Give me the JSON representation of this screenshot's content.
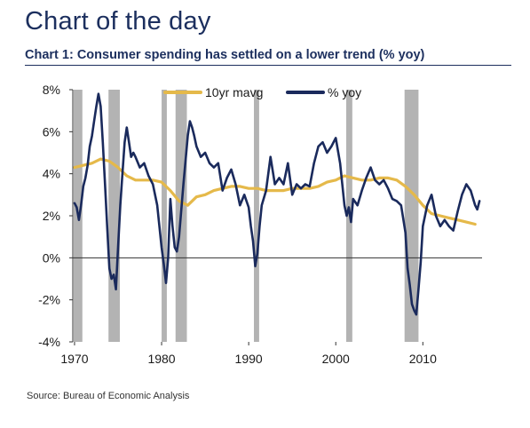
{
  "page": {
    "heading": "Chart of the day",
    "subtitle": "Chart 1: Consumer spending has settled on a lower trend (% yoy)",
    "source": "Source: Bureau of Economic Analysis"
  },
  "chart_data": {
    "type": "line",
    "xlim": [
      1969.8,
      2016.8
    ],
    "ylim": [
      -4,
      8
    ],
    "y_ticks": [
      -4,
      -2,
      0,
      2,
      4,
      6,
      8
    ],
    "y_tick_labels": [
      "-4%",
      "-2%",
      "0%",
      "2%",
      "4%",
      "6%",
      "8%"
    ],
    "x_ticks": [
      1970,
      1980,
      1990,
      2000,
      2010
    ],
    "x_tick_labels": [
      "1970",
      "1980",
      "1990",
      "2000",
      "2010"
    ],
    "legend_placement": "top",
    "recessions": [
      [
        1969.9,
        1970.9
      ],
      [
        1973.9,
        1975.2
      ],
      [
        1980.0,
        1980.6
      ],
      [
        1981.6,
        1982.9
      ],
      [
        1990.6,
        1991.2
      ],
      [
        2001.2,
        2001.9
      ],
      [
        2007.9,
        2009.5
      ]
    ],
    "colors": {
      "recession": "#b3b3b3",
      "mavg": "#e5b94a",
      "yoy": "#1a2a5c",
      "zero_line": "#333333"
    },
    "series": [
      {
        "name": "10yr mavg",
        "x": [
          1970,
          1971,
          1972,
          1973,
          1974,
          1975,
          1976,
          1977,
          1978,
          1979,
          1980,
          1981,
          1982,
          1983,
          1984,
          1985,
          1986,
          1987,
          1988,
          1989,
          1990,
          1991,
          1992,
          1993,
          1994,
          1995,
          1996,
          1997,
          1998,
          1999,
          2000,
          2001,
          2002,
          2003,
          2004,
          2005,
          2006,
          2007,
          2008,
          2009,
          2010,
          2011,
          2012,
          2013,
          2014,
          2015,
          2016
        ],
        "values": [
          4.3,
          4.4,
          4.5,
          4.7,
          4.6,
          4.3,
          3.9,
          3.7,
          3.7,
          3.7,
          3.6,
          3.2,
          2.7,
          2.5,
          2.9,
          3.0,
          3.2,
          3.3,
          3.4,
          3.4,
          3.3,
          3.3,
          3.2,
          3.2,
          3.2,
          3.3,
          3.3,
          3.3,
          3.4,
          3.6,
          3.7,
          3.9,
          3.8,
          3.7,
          3.7,
          3.8,
          3.8,
          3.7,
          3.4,
          3.0,
          2.5,
          2.1,
          2.0,
          1.9,
          1.8,
          1.7,
          1.6
        ]
      },
      {
        "name": "% yoy",
        "x": [
          1970.0,
          1970.25,
          1970.5,
          1970.75,
          1971.0,
          1971.25,
          1971.5,
          1971.75,
          1972.0,
          1972.25,
          1972.5,
          1972.75,
          1973.0,
          1973.25,
          1973.5,
          1973.75,
          1974.0,
          1974.25,
          1974.5,
          1974.75,
          1975.0,
          1975.25,
          1975.5,
          1975.75,
          1976.0,
          1976.25,
          1976.5,
          1976.75,
          1977.0,
          1977.5,
          1978.0,
          1978.5,
          1979.0,
          1979.5,
          1980.0,
          1980.25,
          1980.5,
          1980.75,
          1981.0,
          1981.25,
          1981.5,
          1981.75,
          1982.0,
          1982.5,
          1983.0,
          1983.25,
          1983.5,
          1983.75,
          1984.0,
          1984.5,
          1985.0,
          1985.5,
          1986.0,
          1986.5,
          1987.0,
          1987.5,
          1988.0,
          1988.5,
          1989.0,
          1989.5,
          1990.0,
          1990.25,
          1990.5,
          1990.75,
          1991.0,
          1991.25,
          1991.5,
          1992.0,
          1992.5,
          1993.0,
          1993.5,
          1994.0,
          1994.5,
          1995.0,
          1995.5,
          1996.0,
          1996.5,
          1997.0,
          1997.5,
          1998.0,
          1998.5,
          1999.0,
          1999.5,
          2000.0,
          2000.5,
          2001.0,
          2001.25,
          2001.5,
          2001.75,
          2002.0,
          2002.5,
          2003.0,
          2003.5,
          2004.0,
          2004.5,
          2005.0,
          2005.5,
          2006.0,
          2006.5,
          2007.0,
          2007.5,
          2008.0,
          2008.25,
          2008.5,
          2008.75,
          2009.0,
          2009.25,
          2009.5,
          2009.75,
          2010.0,
          2010.5,
          2011.0,
          2011.5,
          2012.0,
          2012.5,
          2013.0,
          2013.5,
          2014.0,
          2014.5,
          2015.0,
          2015.5,
          2016.0,
          2016.25,
          2016.5
        ],
        "values": [
          2.6,
          2.4,
          1.8,
          2.5,
          3.4,
          3.8,
          4.4,
          5.3,
          5.8,
          6.5,
          7.2,
          7.8,
          7.2,
          5.5,
          3.5,
          1.5,
          -0.5,
          -1.0,
          -0.8,
          -1.5,
          0.5,
          2.5,
          4.0,
          5.5,
          6.2,
          5.5,
          4.8,
          5.0,
          4.8,
          4.3,
          4.5,
          3.9,
          3.5,
          2.5,
          0.5,
          -0.3,
          -1.2,
          0.0,
          2.8,
          1.5,
          0.5,
          0.3,
          1.0,
          3.5,
          5.8,
          6.5,
          6.2,
          5.8,
          5.3,
          4.8,
          5.0,
          4.5,
          4.3,
          4.5,
          3.2,
          3.8,
          4.2,
          3.5,
          2.5,
          3.0,
          2.4,
          1.5,
          0.8,
          -0.4,
          0.2,
          1.5,
          2.5,
          3.2,
          4.8,
          3.5,
          3.8,
          3.5,
          4.5,
          3.0,
          3.5,
          3.3,
          3.5,
          3.4,
          4.5,
          5.3,
          5.5,
          5.0,
          5.3,
          5.7,
          4.5,
          2.5,
          2.0,
          2.4,
          1.7,
          2.8,
          2.5,
          3.2,
          3.8,
          4.3,
          3.7,
          3.5,
          3.7,
          3.3,
          2.8,
          2.7,
          2.5,
          1.2,
          -0.5,
          -1.3,
          -2.2,
          -2.5,
          -2.7,
          -1.5,
          -0.2,
          1.5,
          2.5,
          3.0,
          2.0,
          1.5,
          1.8,
          1.5,
          1.3,
          2.2,
          3.0,
          3.5,
          3.2,
          2.5,
          2.3,
          2.7
        ]
      }
    ]
  }
}
